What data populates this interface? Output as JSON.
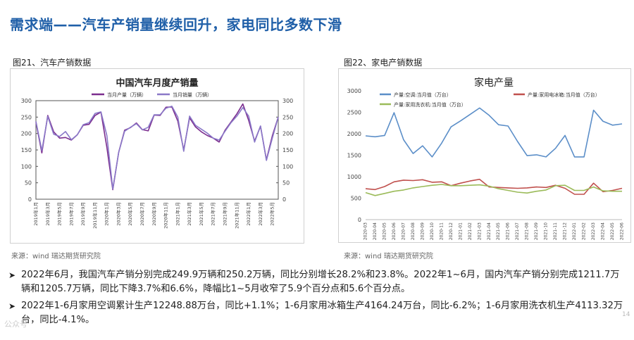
{
  "slide": {
    "title": "需求端——汽车产销量继续回升，家电同比多数下滑",
    "page_number": "14",
    "watermark": "公众号"
  },
  "figure1": {
    "label": "图21、汽车产销数据",
    "source": "来源：wind   瑞达期货研究院"
  },
  "figure2": {
    "label": "图22、家电产销数据",
    "source": "来源：wind   瑞达期货研究院"
  },
  "bullets": [
    "2022年6月，我国汽车产销分别完成249.9万辆和250.2万辆，同比分别增长28.2%和23.8%。2022年1~6月，国内汽车产销分别完成1211.7万辆和1205.7万辆，同比下降3.7%和6.6%，降幅比1~5月收窄了5.9个百分点和5.6个百分点。",
    "2022年1-6月家用空调累计生产12248.88万台，同比+1.1%；1-6月家用冰箱生产4164.24万台，同比-6.2%；1-6月家用洗衣机生产4113.32万台，同比-4.1%。"
  ],
  "chart_data": [
    {
      "type": "line",
      "title": "中国汽车月度产销量",
      "x": [
        "2019年1月",
        "2019年2月",
        "2019年3月",
        "2019年4月",
        "2019年5月",
        "2019年6月",
        "2019年7月",
        "2019年8月",
        "2019年9月",
        "2019年10月",
        "2019年11月",
        "2019年12月",
        "2020年1月",
        "2020年2月",
        "2020年3月",
        "2020年4月",
        "2020年5月",
        "2020年6月",
        "2020年7月",
        "2020年8月",
        "2020年9月",
        "2020年10月",
        "2020年11月",
        "2020年12月",
        "2021年1月",
        "2021年2月",
        "2021年3月",
        "2021年4月",
        "2021年5月",
        "2021年6月",
        "2021年7月",
        "2021年8月",
        "2021年9月",
        "2021年10月",
        "2021年11月",
        "2021年12月",
        "2022年1月",
        "2022年2月",
        "2022年3月",
        "2022年4月",
        "2022年5月",
        "2022年6月"
      ],
      "x_tick_labels": [
        "2019年1月",
        "2019年3月",
        "2019年5月",
        "2019年7月",
        "2019年9月",
        "2019年11月",
        "2020年1月",
        "2020年3月",
        "2020年5月",
        "2020年7月",
        "2020年9月",
        "2020年11月",
        "2021年1月",
        "2021年3月",
        "2021年5月",
        "2021年7月",
        "2021年9月",
        "2021年11月",
        "2022年1月",
        "2022年3月",
        "2022年5月"
      ],
      "series": [
        {
          "name": "当月产量（万辆）",
          "color": "#7b2d8e",
          "values": [
            235,
            141,
            255,
            205,
            186,
            188,
            180,
            196,
            225,
            228,
            255,
            265,
            158,
            29,
            143,
            210,
            218,
            232,
            212,
            208,
            256,
            255,
            280,
            281,
            238,
            150,
            248,
            220,
            205,
            194,
            186,
            174,
            210,
            235,
            260,
            290,
            240,
            177,
            222,
            120,
            193,
            249.9
          ]
        },
        {
          "name": "当月销量（万辆）",
          "color": "#8a78c8",
          "values": [
            237,
            148,
            252,
            198,
            191,
            206,
            181,
            196,
            227,
            233,
            261,
            266,
            194,
            31,
            143,
            207,
            219,
            230,
            211,
            219,
            257,
            257,
            277,
            283,
            250,
            146,
            253,
            225,
            213,
            201,
            186,
            180,
            207,
            233,
            253,
            279,
            253,
            174,
            223,
            118,
            186,
            250.2
          ]
        }
      ],
      "ylim": [
        0,
        300
      ],
      "yticks": [
        0,
        50,
        100,
        150,
        200,
        250,
        300
      ],
      "grid": false,
      "legend": "top"
    },
    {
      "type": "line",
      "title": "家电产量",
      "x": [
        "2020-03",
        "2020-04",
        "2020-05",
        "2020-06",
        "2020-07",
        "2020-08",
        "2020-09",
        "2020-10",
        "2020-11",
        "2020-12",
        "2021-01",
        "2021-02",
        "2021-03",
        "2021-04",
        "2021-05",
        "2021-06",
        "2021-07",
        "2021-08",
        "2021-09",
        "2021-10",
        "2021-11",
        "2021-12",
        "2022-01",
        "2022-02",
        "2022-03",
        "2022-04",
        "2022-05",
        "2022-06"
      ],
      "x_tick_labels": [
        "2020-03",
        "2020-04",
        "2020-05",
        "2020-06",
        "2020-07",
        "2020-08",
        "2020-09",
        "2020-10",
        "2020-11",
        "2020-12",
        "2021-01",
        "2021-02",
        "2021-03",
        "2021-04",
        "2021-05",
        "2021-06",
        "2021-07",
        "2021-08",
        "2021-09",
        "2021-10",
        "2021-11",
        "2021-12",
        "2022-01",
        "2022-02",
        "2022-03",
        "2022-04",
        "2022-05",
        "2022-06"
      ],
      "series": [
        {
          "name": "产量:空调:当月值（万台）",
          "color": "#5b8ec8",
          "values": [
            1950,
            1930,
            1960,
            2490,
            1860,
            1540,
            1720,
            1460,
            1780,
            2160,
            2300,
            2450,
            2600,
            2430,
            2210,
            2180,
            1820,
            1490,
            1510,
            1460,
            1660,
            1960,
            1460,
            1460,
            2550,
            2290,
            2200,
            2230
          ]
        },
        {
          "name": "产量:家用电冰箱:当月值（万台）",
          "color": "#c0504d",
          "values": [
            720,
            700,
            770,
            880,
            920,
            910,
            930,
            870,
            880,
            790,
            850,
            900,
            940,
            760,
            750,
            740,
            730,
            740,
            760,
            750,
            800,
            730,
            590,
            590,
            850,
            650,
            680,
            730
          ]
        },
        {
          "name": "产量:家用洗衣机:当月值（万台）",
          "color": "#9bbb59",
          "values": [
            630,
            560,
            610,
            660,
            690,
            740,
            770,
            800,
            820,
            790,
            790,
            800,
            810,
            780,
            720,
            680,
            640,
            620,
            660,
            690,
            790,
            800,
            680,
            680,
            760,
            670,
            660,
            660
          ]
        }
      ],
      "ylim": [
        0,
        3000
      ],
      "yticks": [
        0,
        500,
        1000,
        1500,
        2000,
        2500,
        3000
      ],
      "grid": false,
      "legend": "top"
    }
  ]
}
